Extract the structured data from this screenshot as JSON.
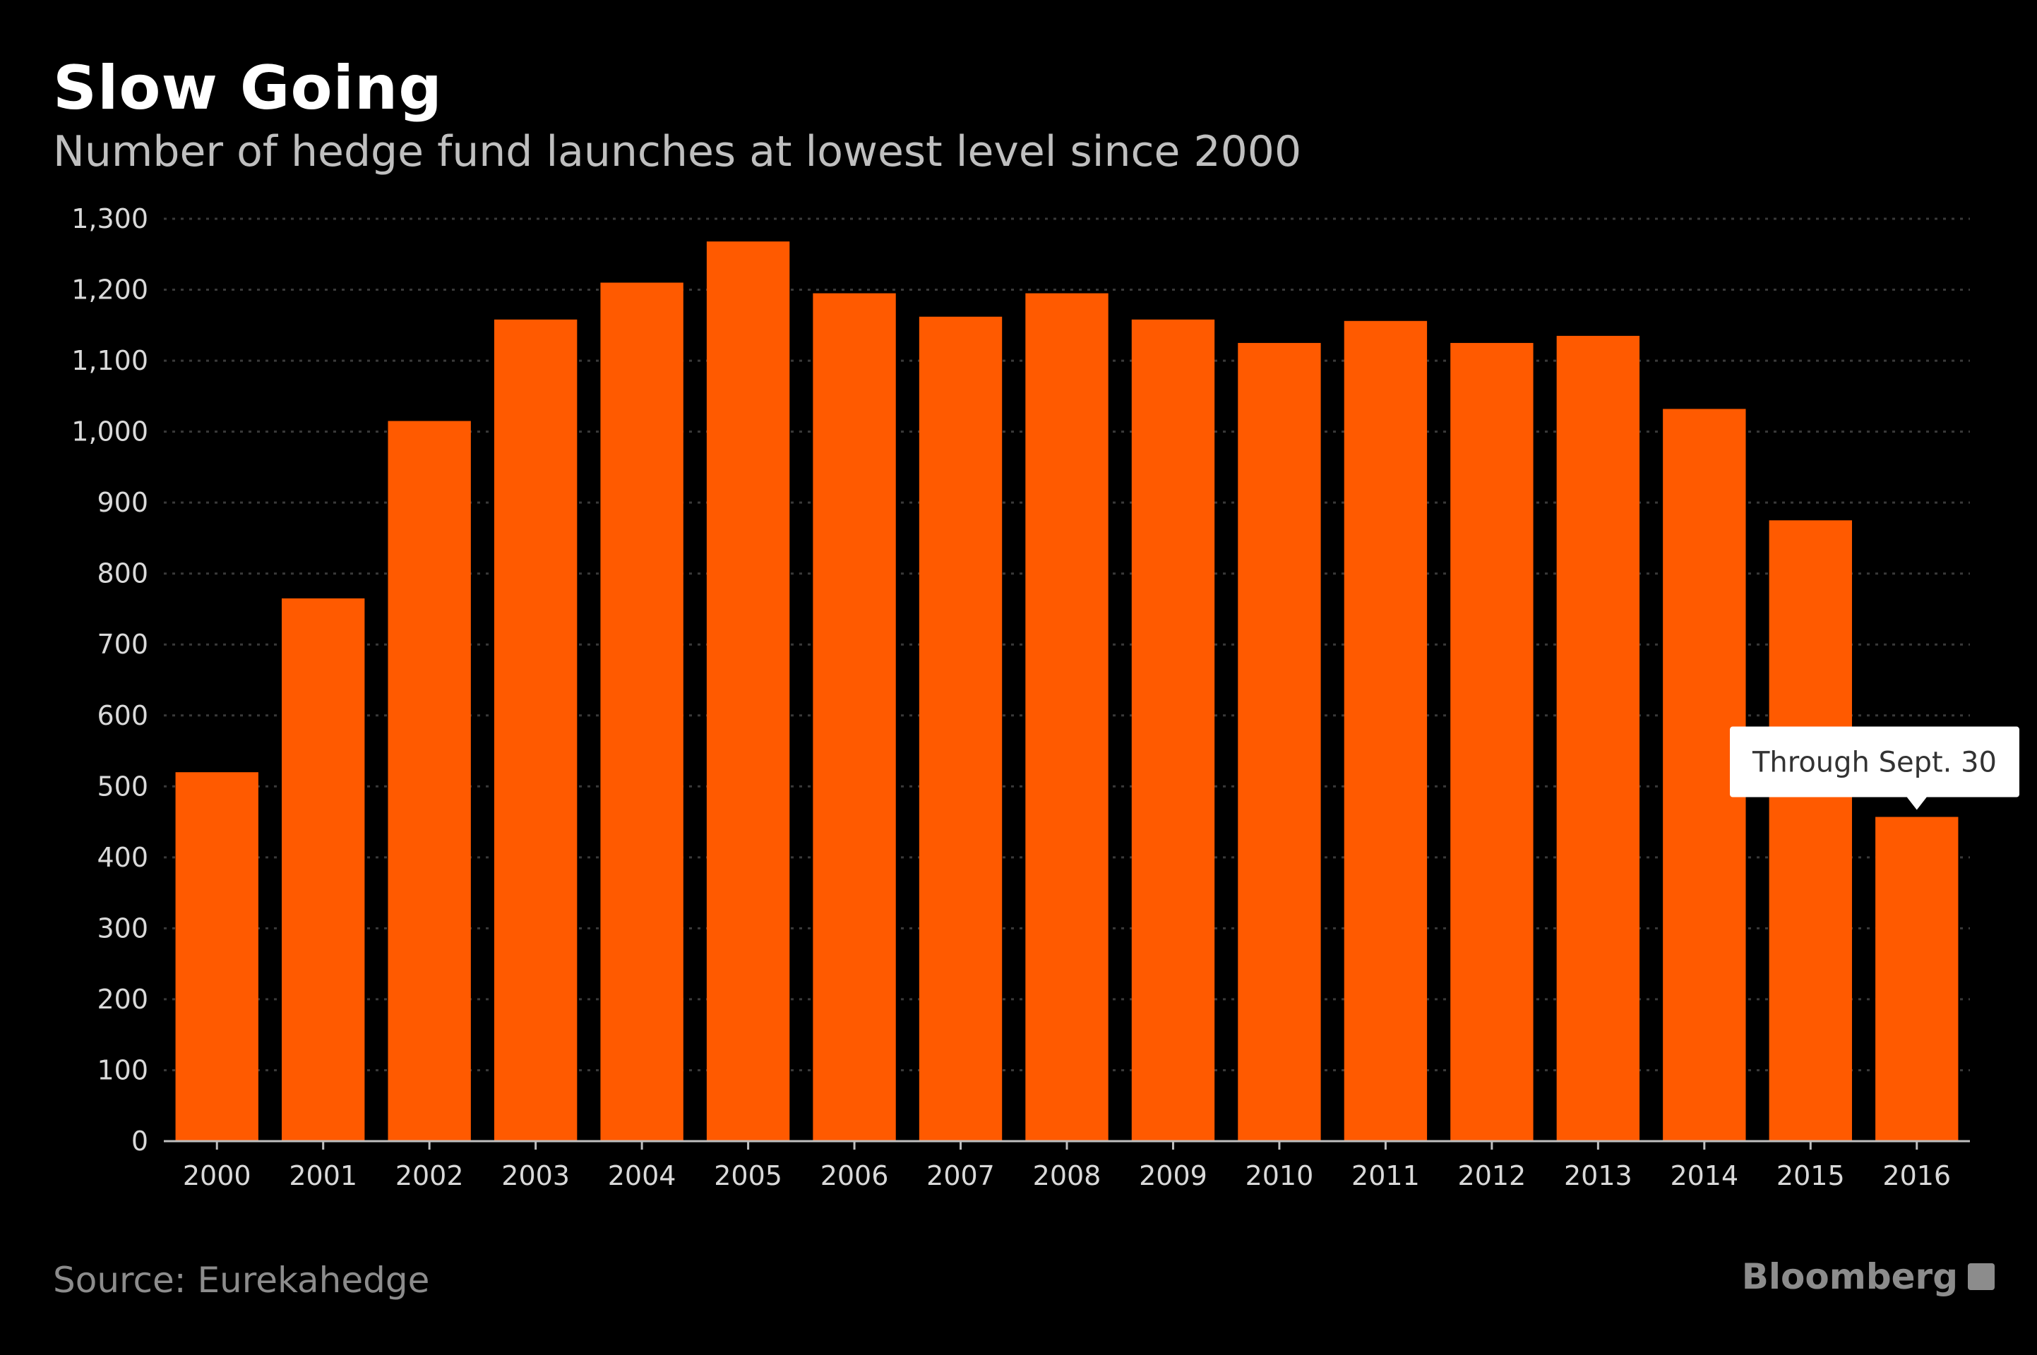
{
  "header": {
    "title": "Slow Going",
    "subtitle": "Number of hedge fund launches at lowest level since 2000"
  },
  "footer": {
    "source": "Source:  Eurekahedge",
    "brand": "Bloomberg"
  },
  "colors": {
    "bar": "#ff5a00",
    "background": "#000000",
    "grid": "#3a3a3a"
  },
  "chart_data": {
    "type": "bar",
    "title": "Slow Going",
    "subtitle": "Number of hedge fund launches at lowest level since 2000",
    "xlabel": "",
    "ylabel": "",
    "categories": [
      "2000",
      "2001",
      "2002",
      "2003",
      "2004",
      "2005",
      "2006",
      "2007",
      "2008",
      "2009",
      "2010",
      "2011",
      "2012",
      "2013",
      "2014",
      "2015",
      "2016"
    ],
    "values": [
      520,
      765,
      1015,
      1158,
      1210,
      1268,
      1195,
      1162,
      1195,
      1158,
      1125,
      1156,
      1125,
      1135,
      1032,
      875,
      457
    ],
    "ylim": [
      0,
      1300
    ],
    "yticks": [
      0,
      100,
      200,
      300,
      400,
      500,
      600,
      700,
      800,
      900,
      1000,
      1100,
      1200,
      1300
    ],
    "ytick_labels": [
      "0",
      "100",
      "200",
      "300",
      "400",
      "500",
      "600",
      "700",
      "800",
      "900",
      "1,000",
      "1,100",
      "1,200",
      "1,300"
    ],
    "grid": true,
    "annotations": [
      {
        "category": "2016",
        "text": "Through Sept. 30"
      }
    ]
  }
}
